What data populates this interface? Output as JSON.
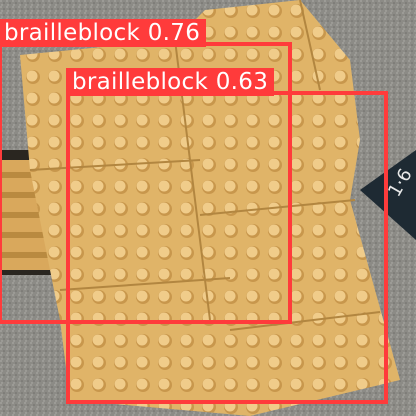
{
  "detections": [
    {
      "class_name": "brailleblock",
      "score": "0.76",
      "color": "#ff3b3b"
    },
    {
      "class_name": "brailleblock",
      "score": "0.63",
      "color": "#ff3b3b"
    }
  ],
  "scene_colors": {
    "tile": "#e2b56a",
    "tile_dark": "#c9974b",
    "asphalt": "#8a8a86",
    "sign": "#1e2a33"
  }
}
